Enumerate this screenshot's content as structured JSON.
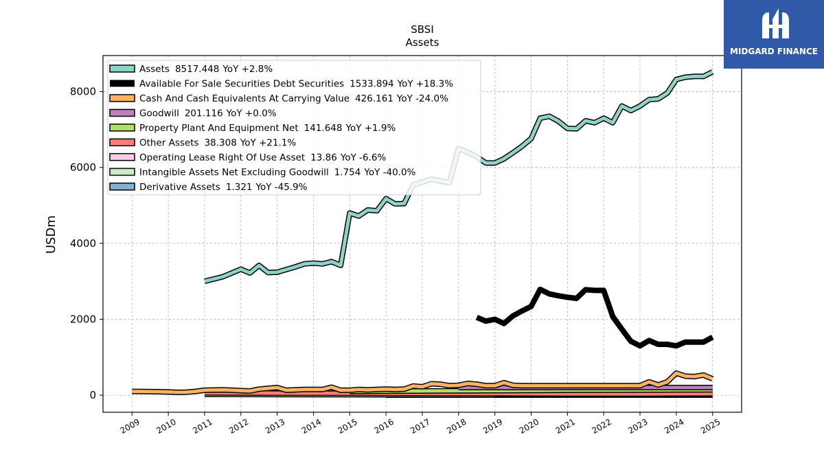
{
  "brand": {
    "name": "MIDGARD FINANCE",
    "bg_color": "#2f5aa8"
  },
  "chart_data": {
    "type": "area",
    "title": "SBSI",
    "subtitle": "Assets",
    "xlabel": "",
    "ylabel": "USDm",
    "xlim": [
      2008.2,
      2025.8
    ],
    "ylim": [
      -450,
      8950
    ],
    "yticks": [
      0,
      2000,
      4000,
      6000,
      8000
    ],
    "xticks": [
      2009,
      2010,
      2011,
      2012,
      2013,
      2014,
      2015,
      2016,
      2017,
      2018,
      2019,
      2020,
      2021,
      2022,
      2023,
      2024,
      2025
    ],
    "grid": true,
    "legend_position": "top-left",
    "series": [
      {
        "name": "Assets",
        "latest": "8517.448",
        "yoy": "YoY +2.8%",
        "color": "#8dd3c7",
        "style": "band",
        "x": [
          2011.0,
          2011.5,
          2012.0,
          2012.25,
          2012.5,
          2012.75,
          2013.0,
          2013.5,
          2013.75,
          2014.0,
          2014.25,
          2014.5,
          2014.75,
          2015.0,
          2015.25,
          2015.5,
          2015.75,
          2016.0,
          2016.25,
          2016.5,
          2016.75,
          2017.25,
          2017.75,
          2018.0,
          2018.25,
          2018.5,
          2018.75,
          2019.0,
          2019.25,
          2019.5,
          2019.75,
          2020.0,
          2020.25,
          2020.5,
          2020.75,
          2021.0,
          2021.25,
          2021.5,
          2021.75,
          2022.0,
          2022.25,
          2022.5,
          2022.75,
          2023.0,
          2023.25,
          2023.5,
          2023.75,
          2024.0,
          2024.25,
          2024.5,
          2024.75,
          2025.0
        ],
        "values": [
          3000,
          3120,
          3320,
          3220,
          3420,
          3230,
          3240,
          3380,
          3460,
          3480,
          3460,
          3520,
          3420,
          4800,
          4720,
          4880,
          4860,
          5180,
          5040,
          5050,
          5540,
          5690,
          5600,
          6500,
          6400,
          6280,
          6120,
          6120,
          6230,
          6390,
          6560,
          6760,
          7300,
          7350,
          7220,
          7030,
          7020,
          7230,
          7180,
          7300,
          7180,
          7620,
          7500,
          7620,
          7790,
          7810,
          7960,
          8320,
          8380,
          8400,
          8400,
          8520
        ]
      },
      {
        "name": "Available For Sale Securities Debt Securities",
        "latest": "1533.894",
        "yoy": "YoY +18.3%",
        "color": "#000000",
        "style": "line",
        "x": [
          2018.5,
          2018.75,
          2019.0,
          2019.25,
          2019.5,
          2019.75,
          2020.0,
          2020.25,
          2020.5,
          2020.75,
          2021.0,
          2021.25,
          2021.5,
          2021.75,
          2022.0,
          2022.25,
          2022.5,
          2022.75,
          2023.0,
          2023.25,
          2023.5,
          2023.75,
          2024.0,
          2024.25,
          2024.5,
          2024.75,
          2025.0
        ],
        "values": [
          2050,
          1950,
          2000,
          1890,
          2090,
          2220,
          2340,
          2790,
          2670,
          2620,
          2580,
          2550,
          2780,
          2760,
          2760,
          2070,
          1740,
          1420,
          1300,
          1440,
          1340,
          1340,
          1300,
          1400,
          1400,
          1400,
          1530
        ]
      },
      {
        "name": "Cash And Cash Equivalents At Carrying Value",
        "latest": "426.161",
        "yoy": "YoY -24.0%",
        "color": "#fdb462",
        "style": "band",
        "x": [
          2009.0,
          2009.5,
          2010.0,
          2010.25,
          2010.5,
          2010.75,
          2011.0,
          2011.5,
          2011.75,
          2012.0,
          2012.25,
          2012.5,
          2012.75,
          2013.0,
          2013.25,
          2013.5,
          2013.75,
          2014.0,
          2014.25,
          2014.5,
          2014.75,
          2015.0,
          2015.25,
          2015.5,
          2015.75,
          2016.0,
          2016.25,
          2016.5,
          2016.75,
          2017.0,
          2017.25,
          2017.5,
          2017.75,
          2018.0,
          2018.25,
          2018.5,
          2018.75,
          2019.0,
          2019.25,
          2019.5,
          2019.75,
          2020.0,
          2020.5,
          2021.0,
          2021.5,
          2022.0,
          2022.5,
          2023.0,
          2023.25,
          2023.5,
          2023.75,
          2024.0,
          2024.25,
          2024.5,
          2024.75,
          2025.0
        ],
        "values": [
          100,
          95,
          85,
          75,
          80,
          100,
          130,
          140,
          130,
          120,
          110,
          160,
          180,
          200,
          130,
          140,
          150,
          150,
          150,
          210,
          130,
          130,
          150,
          140,
          150,
          160,
          150,
          160,
          240,
          220,
          300,
          290,
          250,
          260,
          310,
          290,
          250,
          250,
          330,
          260,
          250,
          250,
          250,
          250,
          250,
          250,
          250,
          250,
          350,
          270,
          350,
          580,
          500,
          490,
          530,
          430
        ]
      },
      {
        "name": "Goodwill",
        "latest": "201.116",
        "yoy": "YoY +0.0%",
        "color": "#bc80bd",
        "style": "band",
        "x": [
          2018.0,
          2025.0
        ],
        "values": [
          201,
          201
        ]
      },
      {
        "name": "Property Plant And Equipment Net",
        "latest": "141.648",
        "yoy": "YoY +1.9%",
        "color": "#b3de69",
        "style": "band",
        "x": [
          2015.0,
          2016.0,
          2017.0,
          2018.0,
          2019.0,
          2020.0,
          2021.0,
          2022.0,
          2023.0,
          2024.0,
          2025.0
        ],
        "values": [
          100,
          105,
          110,
          115,
          120,
          125,
          130,
          132,
          135,
          139,
          142
        ]
      },
      {
        "name": "Other Assets",
        "latest": "38.308",
        "yoy": "YoY +21.1%",
        "color": "#fb8072",
        "style": "band",
        "x": [
          2011.0,
          2013.0,
          2015.0,
          2017.0,
          2019.0,
          2021.0,
          2023.0,
          2025.0
        ],
        "values": [
          60,
          55,
          50,
          45,
          40,
          35,
          32,
          38
        ]
      },
      {
        "name": "Operating Lease Right Of Use Asset",
        "latest": "13.86",
        "yoy": "YoY -6.6%",
        "color": "#fccde5",
        "style": "band",
        "x": [
          2019.0,
          2020.0,
          2021.0,
          2022.0,
          2023.0,
          2024.0,
          2025.0
        ],
        "values": [
          20,
          18,
          17,
          16,
          15,
          14.8,
          13.86
        ]
      },
      {
        "name": "Intangible Assets Net Excluding Goodwill",
        "latest": "1.754",
        "yoy": "YoY -40.0%",
        "color": "#ccebc5",
        "style": "band",
        "x": [
          2011.0,
          2013.0,
          2015.0,
          2017.0,
          2019.0,
          2021.0,
          2023.0,
          2025.0
        ],
        "values": [
          20,
          16,
          12,
          9,
          6,
          4,
          3,
          1.754
        ]
      },
      {
        "name": "Derivative Assets",
        "latest": "1.321",
        "yoy": "YoY -45.9%",
        "color": "#80b1d3",
        "style": "band",
        "x": [
          2016.0,
          2018.0,
          2020.0,
          2022.0,
          2024.0,
          2025.0
        ],
        "values": [
          2,
          2,
          2,
          2,
          2.4,
          1.321
        ]
      }
    ]
  }
}
